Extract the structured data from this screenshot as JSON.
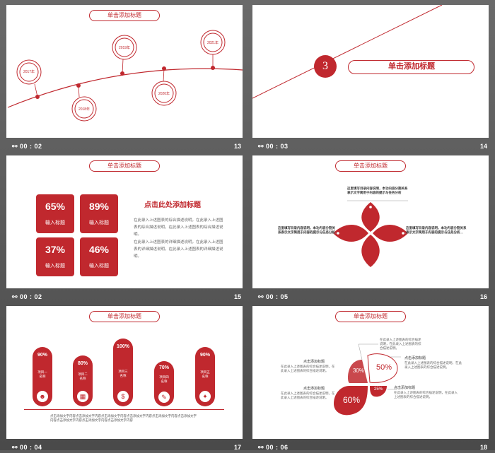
{
  "slides": [
    {
      "num": "13",
      "time": "00 : 02",
      "title": "单击添加标题",
      "years": [
        "2017年",
        "2018年",
        "2019年",
        "2020年",
        "2021年"
      ]
    },
    {
      "num": "14",
      "time": "00 : 03",
      "title": "单击添加标题",
      "index": "3"
    },
    {
      "num": "15",
      "time": "00 : 02",
      "title": "单击添加标题",
      "stats": [
        {
          "pct": "65%",
          "label": "输入标题"
        },
        {
          "pct": "89%",
          "label": "输入标题"
        },
        {
          "pct": "37%",
          "label": "输入标题"
        },
        {
          "pct": "46%",
          "label": "输入标题"
        }
      ],
      "heading": "点击此处添加标题",
      "para1": "在此录入上述图表的综合描述说明，在此录入上述图表的综合描述说明，在此录入上述图表的综合描述说明。",
      "para2": "在此录入上述图表的详细描述说明，在此录入上述图表的详细描述说明，在此录入上述图表的详细描述说明。"
    },
    {
      "num": "16",
      "time": "00 : 05",
      "title": "单击添加标题",
      "note1": "这里填写目录内容说明，本功内容分割关系表示文字简用于内容的提示与任务分析",
      "note2": "这里填写目录内容说明，本功内容分割关系表示文字简用于内容的提示与任务分析",
      "note3": "这里填写目录内容说明，本功内容分割关系表示文字简用于内容的提示与任务分析"
    },
    {
      "num": "17",
      "time": "00 : 04",
      "title": "单击添加标题",
      "bars": [
        {
          "pct": "90%",
          "label": "项目一\n名称"
        },
        {
          "pct": "80%",
          "label": "项目二\n名称"
        },
        {
          "pct": "100%",
          "label": "项目三\n名称"
        },
        {
          "pct": "70%",
          "label": "项目四\n名称"
        },
        {
          "pct": "90%",
          "label": "项目五\n名称"
        }
      ],
      "footer": "点击添加文字内容点击添加文字内容点击添加文字内容点击添加文字内容点击添加文字内容点击添加文字内容点击添加文字内容点击添加文字内容点击添加文字内容"
    },
    {
      "num": "18",
      "time": "00 : 06",
      "title": "单击添加标题",
      "pcts": [
        "30%",
        "50%",
        "60%",
        "25%"
      ],
      "labels": [
        "点击添加标题",
        "点击添加标题",
        "点击添加标题",
        "点击添加标题"
      ],
      "desc": "在此录入上述图表的综合描述说明，在此录入上述图表的综合描述说明。"
    }
  ],
  "colors": {
    "accent": "#c0282e",
    "bg": "#5b5b5b"
  }
}
